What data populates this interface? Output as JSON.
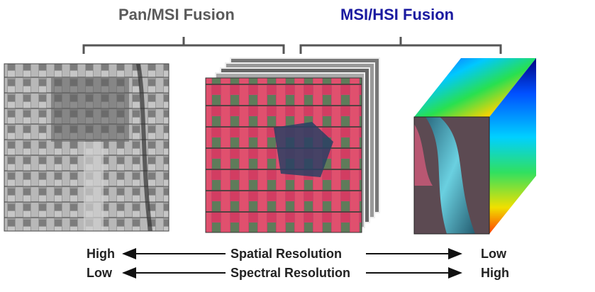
{
  "titles": {
    "pan_msi": "Pan/MSI Fusion",
    "msi_hsi": "MSI/HSI Fusion"
  },
  "scale": {
    "spatial": {
      "left": "High",
      "label": "Spatial Resolution",
      "right": "Low"
    },
    "spectral": {
      "left": "Low",
      "label": "Spectral Resolution",
      "right": "High"
    }
  },
  "colors": {
    "pan_title": "#5a5a5a",
    "hsi_title": "#1a1aa0",
    "bracket": "#555555",
    "arrow": "#111111"
  },
  "images": {
    "panchromatic": "panchromatic-image",
    "multispectral": "multispectral-image-stack",
    "hyperspectral": "hyperspectral-cube"
  }
}
